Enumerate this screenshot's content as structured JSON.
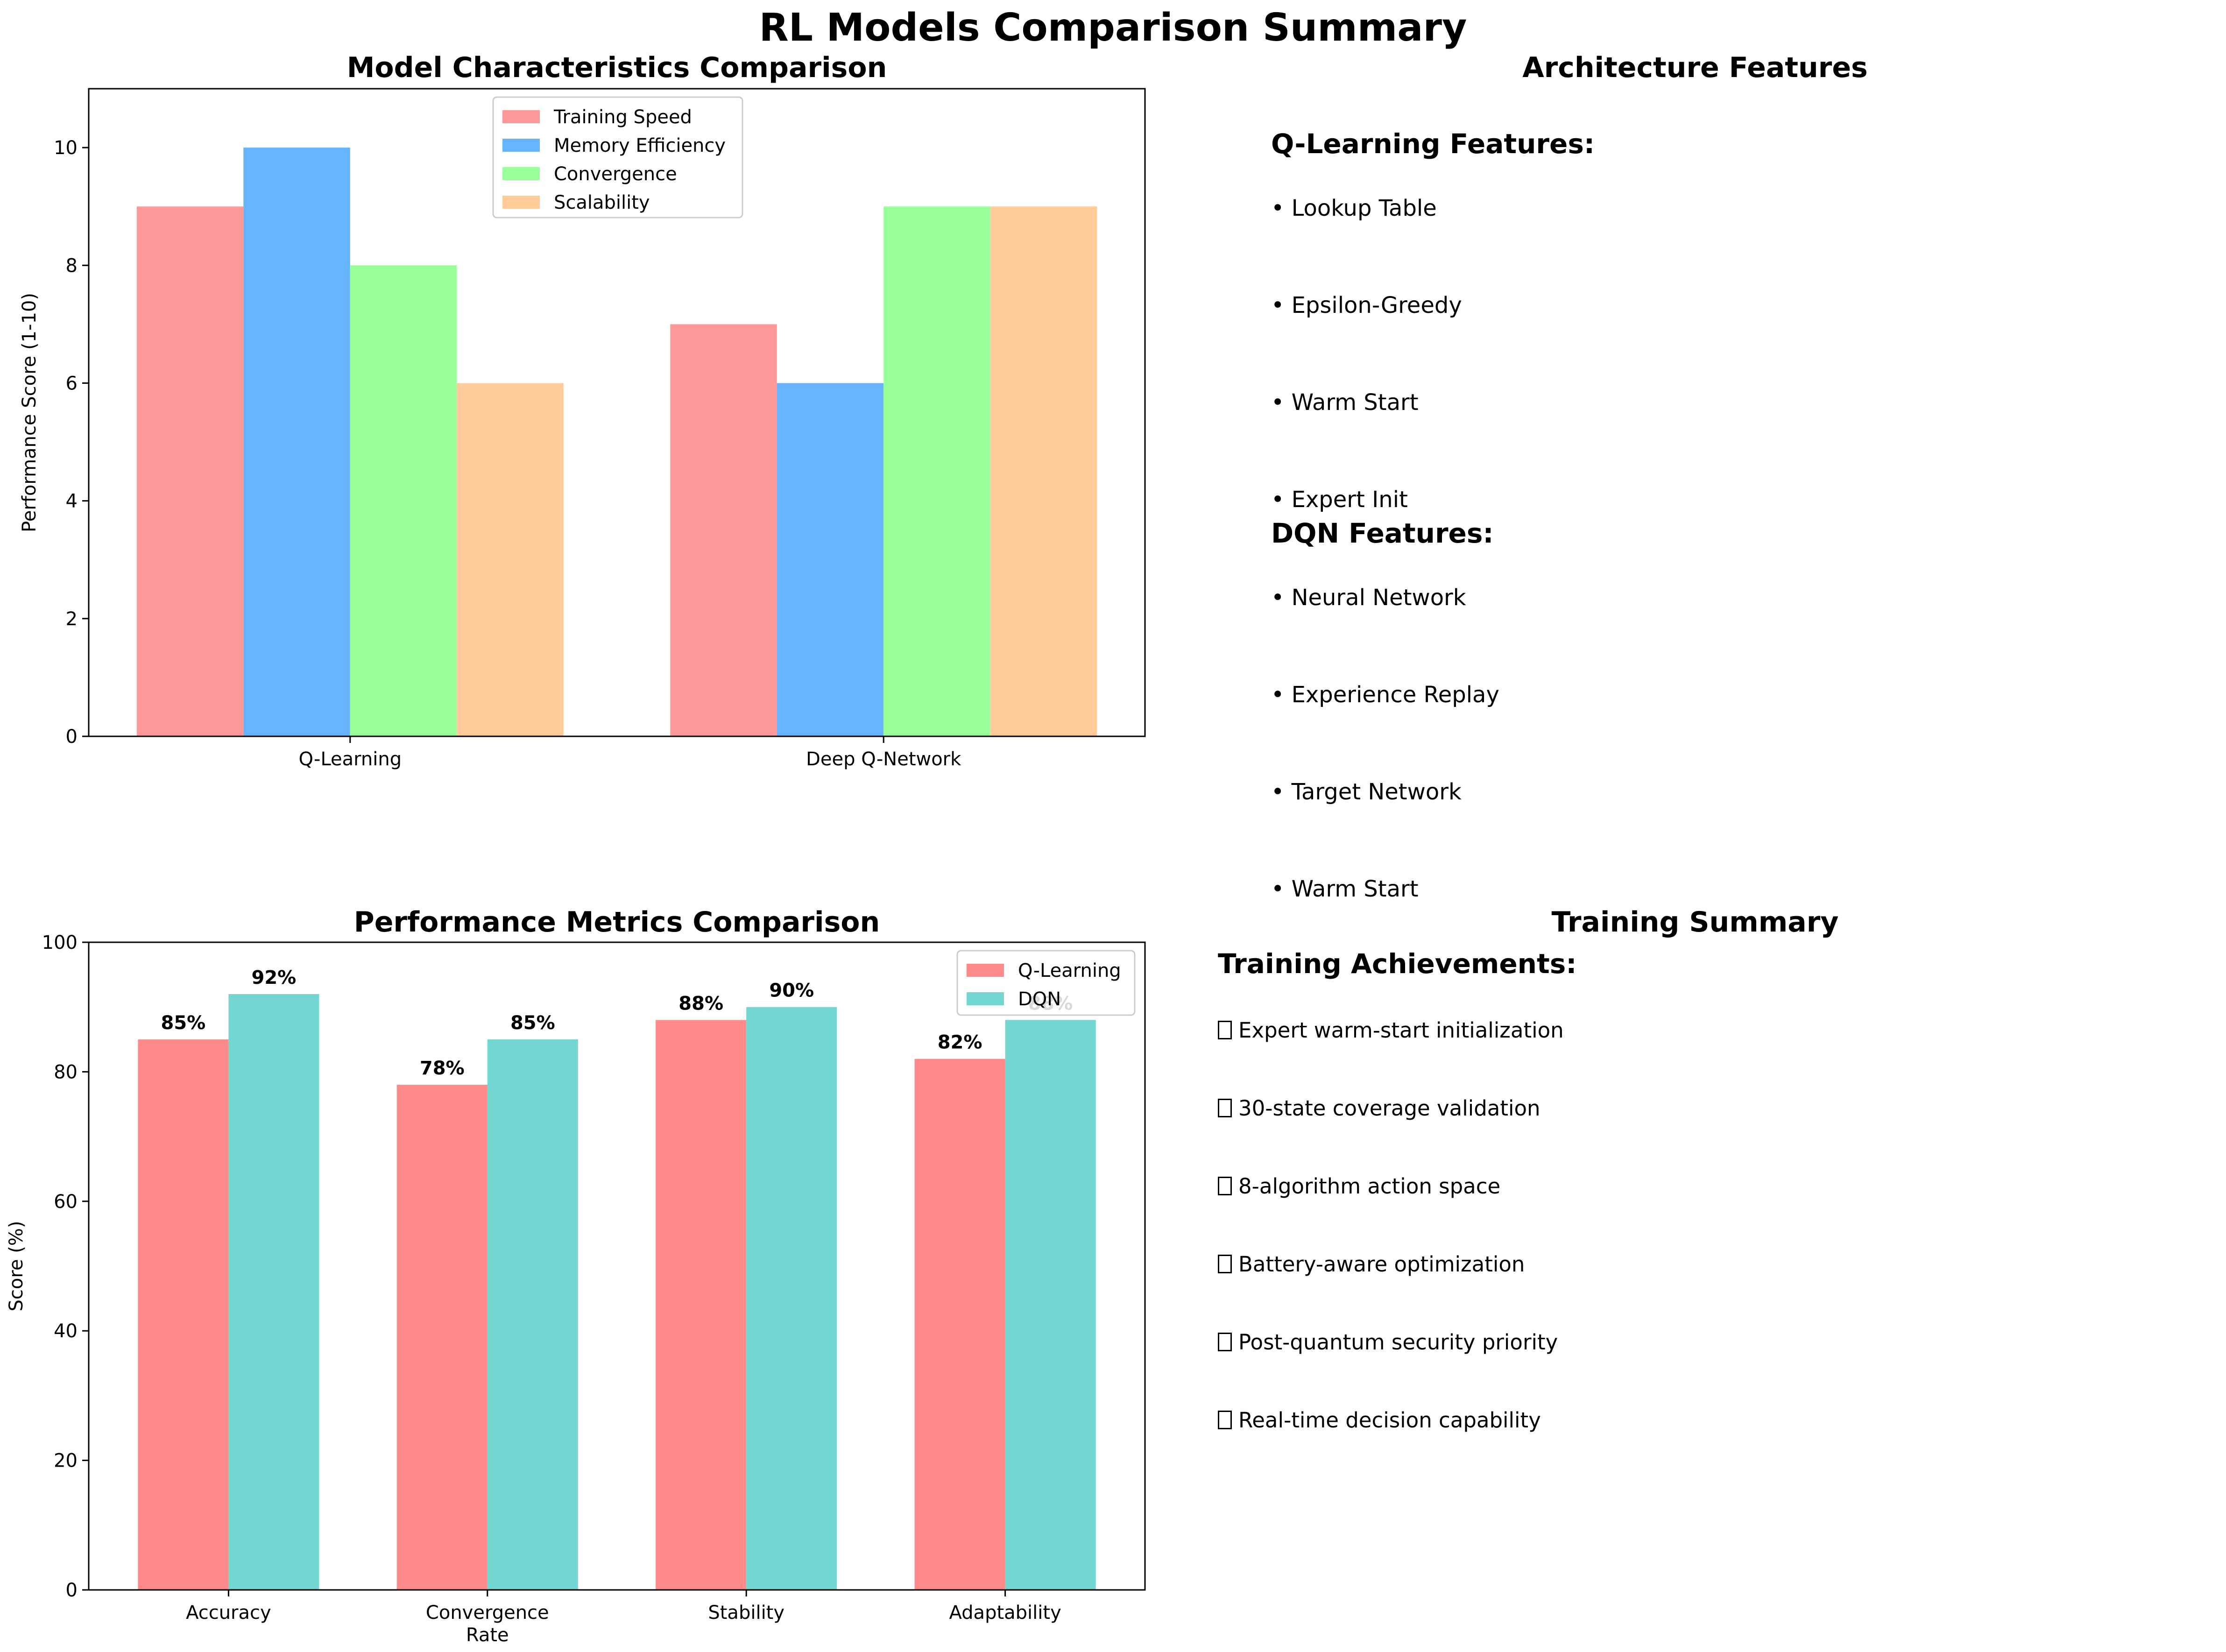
{
  "title": "RL Models Comparison Summary",
  "chart_data": [
    {
      "type": "bar",
      "title": "Model Characteristics Comparison",
      "categories": [
        "Q-Learning",
        "Deep Q-Network"
      ],
      "ylabel": "Performance Score (1-10)",
      "xlabel": "",
      "ylim": [
        0,
        11
      ],
      "yticks": [
        0,
        2,
        4,
        6,
        8,
        10
      ],
      "legend": "top-center",
      "grid": false,
      "series": [
        {
          "name": "Training Speed",
          "values": [
            9,
            7
          ],
          "color": "#ff9999"
        },
        {
          "name": "Memory Efficiency",
          "values": [
            10,
            6
          ],
          "color": "#66b3ff"
        },
        {
          "name": "Convergence",
          "values": [
            8,
            9
          ],
          "color": "#99ff99"
        },
        {
          "name": "Scalability",
          "values": [
            6,
            9
          ],
          "color": "#ffcc99"
        }
      ]
    },
    {
      "type": "bar",
      "title": "Performance Metrics Comparison",
      "categories": [
        "Accuracy",
        "Convergence Rate",
        "Stability",
        "Adaptability"
      ],
      "category_lines": [
        [
          "Accuracy"
        ],
        [
          "Convergence",
          "Rate"
        ],
        [
          "Stability"
        ],
        [
          "Adaptability"
        ]
      ],
      "ylabel": "Score (%)",
      "xlabel": "",
      "ylim": [
        0,
        100
      ],
      "yticks": [
        0,
        20,
        40,
        60,
        80,
        100
      ],
      "legend": "top-right",
      "grid": false,
      "series": [
        {
          "name": "Q-Learning",
          "values": [
            85,
            78,
            88,
            82
          ],
          "labels": [
            "85%",
            "78%",
            "88%",
            "82%"
          ],
          "color": "#ff8a8a"
        },
        {
          "name": "DQN",
          "values": [
            92,
            85,
            90,
            88
          ],
          "labels": [
            "92%",
            "85%",
            "90%",
            "88%"
          ],
          "color": "#74d6d0"
        }
      ]
    }
  ],
  "architecture": {
    "title": "Architecture Features",
    "qlearning_heading": "Q-Learning Features:",
    "qlearning_items": [
      "• Lookup Table",
      "• Epsilon-Greedy",
      "• Warm Start",
      "• Expert Init"
    ],
    "dqn_heading": "DQN Features:",
    "dqn_items": [
      "• Neural Network",
      "• Experience Replay",
      "• Target Network",
      "• Warm Start"
    ]
  },
  "training": {
    "title": "Training Summary",
    "heading": "Training Achievements:",
    "items": [
      "Expert warm-start initialization",
      "30-state coverage validation",
      "8-algorithm action space",
      "Battery-aware optimization",
      "Post-quantum security priority",
      "Real-time decision capability"
    ]
  }
}
